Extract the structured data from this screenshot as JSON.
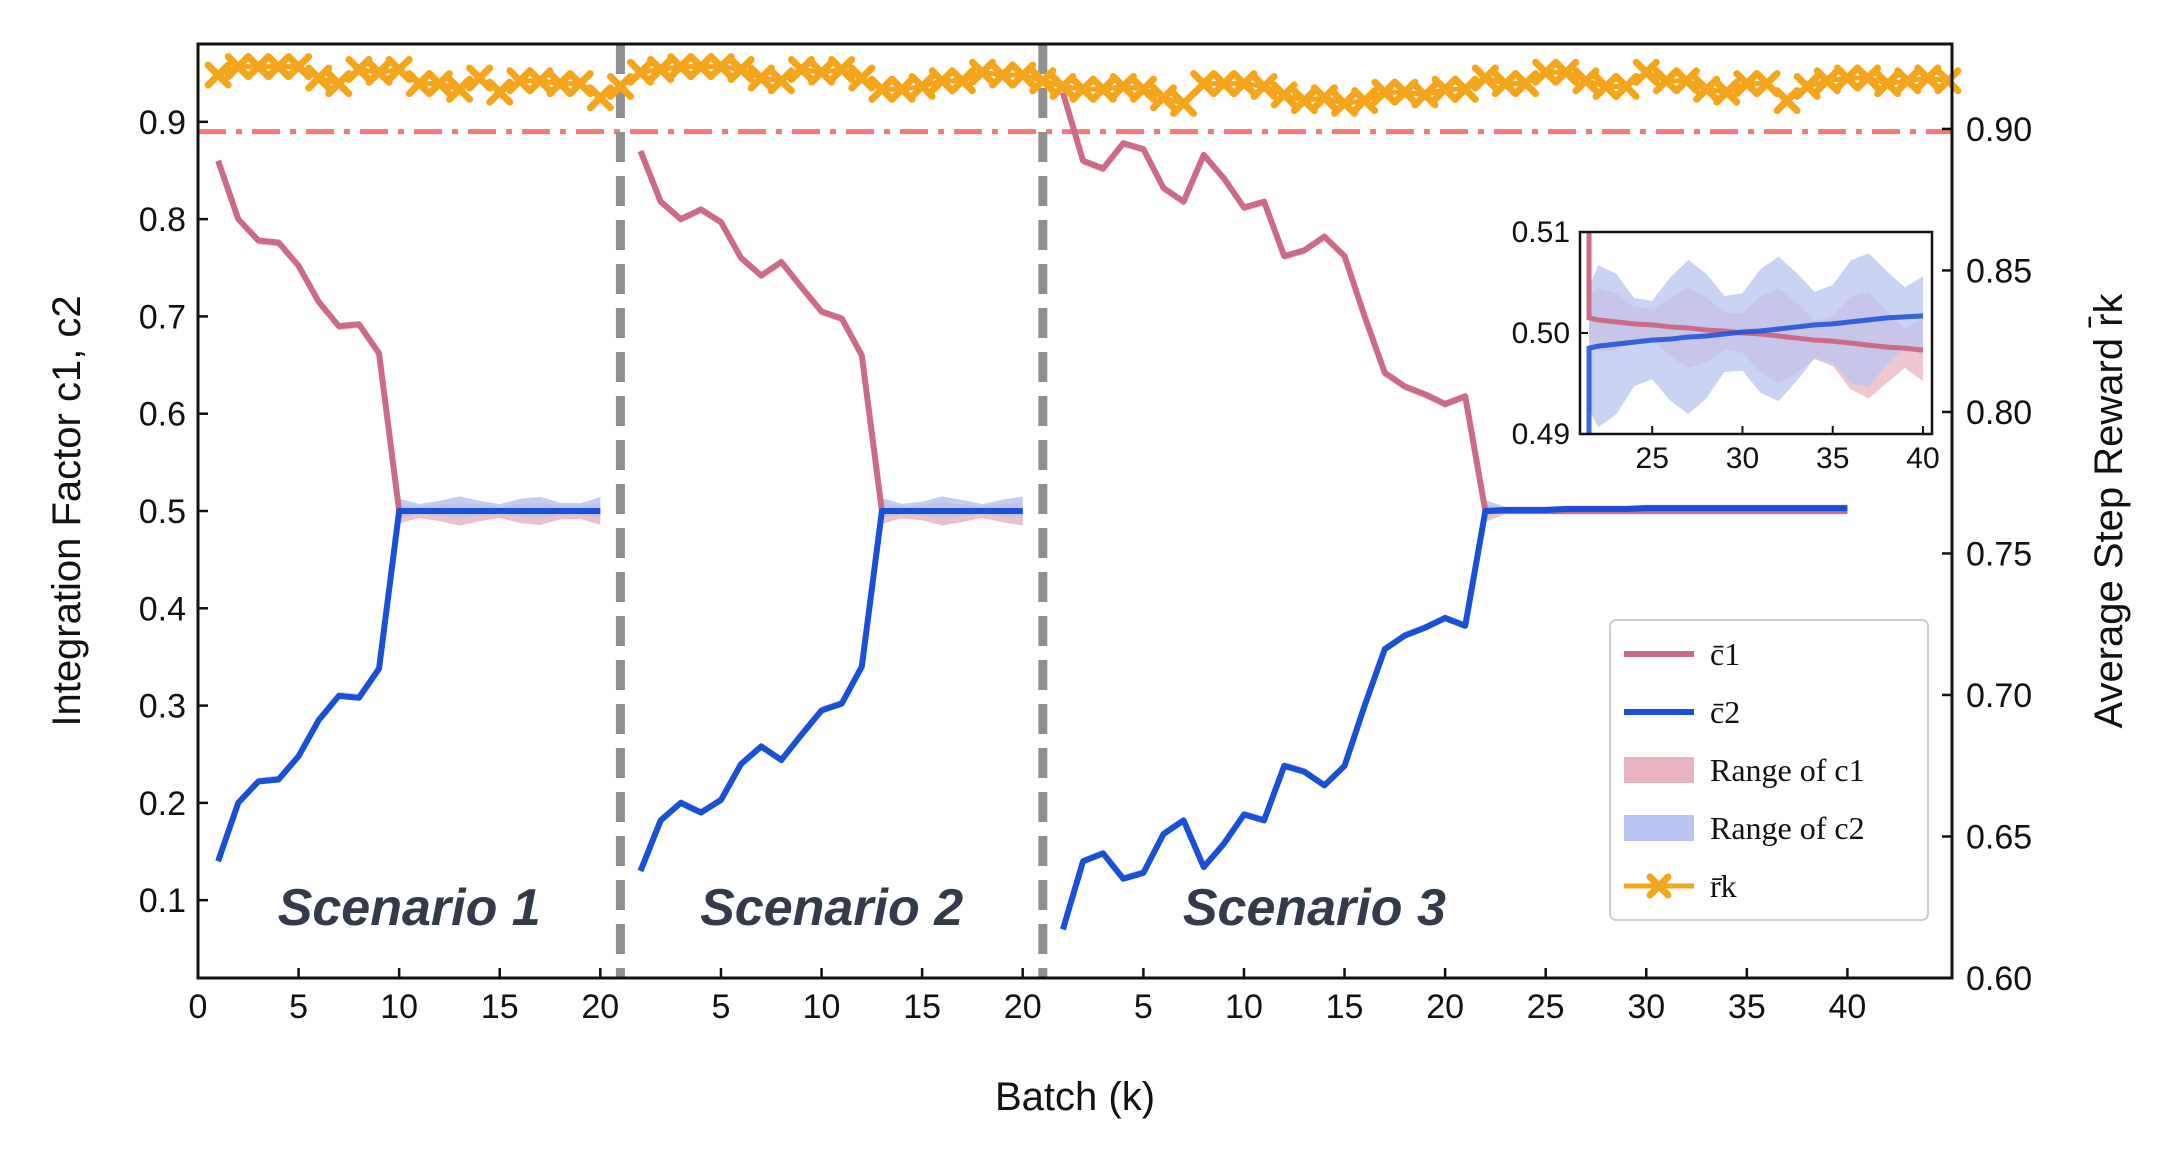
{
  "chart_data": {
    "type": "line",
    "xlabel": "Batch (k)",
    "ylabel_left": "Integration Factor  c1, c2",
    "ylabel_right": "Average Step Reward r̄k",
    "ylim_left": [
      0.02,
      0.98
    ],
    "ylim_right": [
      0.6,
      0.93
    ],
    "left_ticks": [
      "0.1",
      "0.2",
      "0.3",
      "0.4",
      "0.5",
      "0.6",
      "0.7",
      "0.8",
      "0.9"
    ],
    "right_ticks": [
      "0.60",
      "0.65",
      "0.70",
      "0.75",
      "0.80",
      "0.85",
      "0.90"
    ],
    "threshold_line": 0.89,
    "scenario_boundaries": [
      21,
      42
    ],
    "scenarios": [
      {
        "name": "Scenario 1",
        "start": 0,
        "ticks": [
          "0",
          "5",
          "10",
          "15",
          "20"
        ],
        "c1": [
          0.86,
          0.8,
          0.778,
          0.776,
          0.752,
          0.715,
          0.69,
          0.692,
          0.662,
          0.5,
          0.5,
          0.5,
          0.5,
          0.5,
          0.5,
          0.5,
          0.5,
          0.5,
          0.5,
          0.5
        ],
        "c2": [
          0.14,
          0.2,
          0.222,
          0.224,
          0.248,
          0.285,
          0.31,
          0.308,
          0.338,
          0.5,
          0.5,
          0.5,
          0.5,
          0.5,
          0.5,
          0.5,
          0.5,
          0.5,
          0.5,
          0.5
        ]
      },
      {
        "name": "Scenario 2",
        "start": 21,
        "ticks": [
          "5",
          "10",
          "15",
          "20"
        ],
        "c1": [
          0.87,
          0.818,
          0.8,
          0.81,
          0.797,
          0.76,
          0.742,
          0.756,
          0.73,
          0.705,
          0.698,
          0.66,
          0.5,
          0.5,
          0.5,
          0.5,
          0.5,
          0.5,
          0.5,
          0.5
        ],
        "c2": [
          0.13,
          0.182,
          0.2,
          0.19,
          0.203,
          0.24,
          0.258,
          0.244,
          0.27,
          0.295,
          0.302,
          0.34,
          0.5,
          0.5,
          0.5,
          0.5,
          0.5,
          0.5,
          0.5,
          0.5
        ]
      },
      {
        "name": "Scenario 3",
        "start": 42,
        "ticks": [
          "5",
          "10",
          "15",
          "20",
          "25",
          "30",
          "35",
          "40"
        ],
        "c1": [
          0.93,
          0.86,
          0.852,
          0.878,
          0.872,
          0.832,
          0.818,
          0.866,
          0.842,
          0.812,
          0.818,
          0.762,
          0.768,
          0.782,
          0.762,
          0.7,
          0.642,
          0.628,
          0.62,
          0.61,
          0.618,
          0.5,
          0.5,
          0.5,
          0.5,
          0.5,
          0.5,
          0.5,
          0.5,
          0.5,
          0.5,
          0.5,
          0.5,
          0.5,
          0.5,
          0.5,
          0.5,
          0.5,
          0.5,
          0.5
        ],
        "c2": [
          0.07,
          0.14,
          0.148,
          0.122,
          0.128,
          0.168,
          0.182,
          0.134,
          0.158,
          0.188,
          0.182,
          0.238,
          0.232,
          0.218,
          0.238,
          0.3,
          0.358,
          0.372,
          0.38,
          0.39,
          0.382,
          0.5,
          0.501,
          0.501,
          0.501,
          0.502,
          0.502,
          0.502,
          0.502,
          0.503,
          0.503,
          0.503,
          0.503,
          0.503,
          0.503,
          0.503,
          0.503,
          0.503,
          0.503,
          0.503
        ]
      }
    ],
    "reward": [
      0.919,
      0.922,
      0.922,
      0.922,
      0.922,
      0.918,
      0.916,
      0.921,
      0.92,
      0.921,
      0.916,
      0.916,
      0.914,
      0.918,
      0.913,
      0.917,
      0.917,
      0.916,
      0.916,
      0.911,
      0.915,
      0.92,
      0.921,
      0.922,
      0.922,
      0.922,
      0.921,
      0.918,
      0.917,
      0.921,
      0.92,
      0.921,
      0.918,
      0.914,
      0.914,
      0.915,
      0.917,
      0.917,
      0.92,
      0.919,
      0.919,
      0.917,
      0.915,
      0.914,
      0.914,
      0.915,
      0.914,
      0.911,
      0.909,
      0.916,
      0.916,
      0.916,
      0.915,
      0.912,
      0.91,
      0.911,
      0.909,
      0.91,
      0.913,
      0.913,
      0.912,
      0.914,
      0.914,
      0.918,
      0.916,
      0.916,
      0.92,
      0.92,
      0.917,
      0.915,
      0.915,
      0.92,
      0.917,
      0.917,
      0.914,
      0.913,
      0.916,
      0.916,
      0.91,
      0.915,
      0.917,
      0.918,
      0.918,
      0.916,
      0.917,
      0.918,
      0.917
    ],
    "legend": {
      "placement": "lower-right",
      "entries": [
        {
          "label": "c̄1",
          "color": "#cc6b86",
          "style": "line"
        },
        {
          "label": "c̄2",
          "color": "#1a4fd8",
          "style": "line"
        },
        {
          "label": "Range of c1",
          "color": "#e8b4c2",
          "style": "patch"
        },
        {
          "label": "Range of c2",
          "color": "#b9c4f2",
          "style": "patch"
        },
        {
          "label": "r̄k",
          "color": "#f5a51b",
          "style": "line-marker"
        }
      ]
    },
    "inset": {
      "xlim": [
        21,
        40.5
      ],
      "ylim": [
        0.49,
        0.51
      ],
      "x_ticks": [
        "25",
        "30",
        "35",
        "40"
      ],
      "y_ticks": [
        "0.49",
        "0.50",
        "0.51"
      ],
      "x": [
        21.5,
        22,
        23,
        24,
        25,
        26,
        27,
        28,
        29,
        30,
        31,
        32,
        33,
        34,
        35,
        36,
        37,
        38,
        39,
        40
      ],
      "c1": [
        0.5015,
        0.5013,
        0.5011,
        0.5009,
        0.5008,
        0.5006,
        0.5005,
        0.5003,
        0.5002,
        0.5,
        0.4999,
        0.4997,
        0.4995,
        0.4993,
        0.4992,
        0.499,
        0.4988,
        0.4986,
        0.4985,
        0.4983
      ],
      "c2": [
        0.4985,
        0.4987,
        0.4989,
        0.4991,
        0.4993,
        0.4994,
        0.4996,
        0.4997,
        0.4999,
        0.5001,
        0.5002,
        0.5004,
        0.5006,
        0.5008,
        0.5009,
        0.5011,
        0.5013,
        0.5015,
        0.5016,
        0.5017
      ]
    }
  },
  "colors": {
    "c1": "#cc6b86",
    "c2": "#1a4fd8",
    "c1_band": "#e8b4c2",
    "c2_band": "#b9c4f2",
    "reward": "#f5a51b",
    "threshold": "#f07a7a",
    "divider": "#8f8f8f"
  }
}
